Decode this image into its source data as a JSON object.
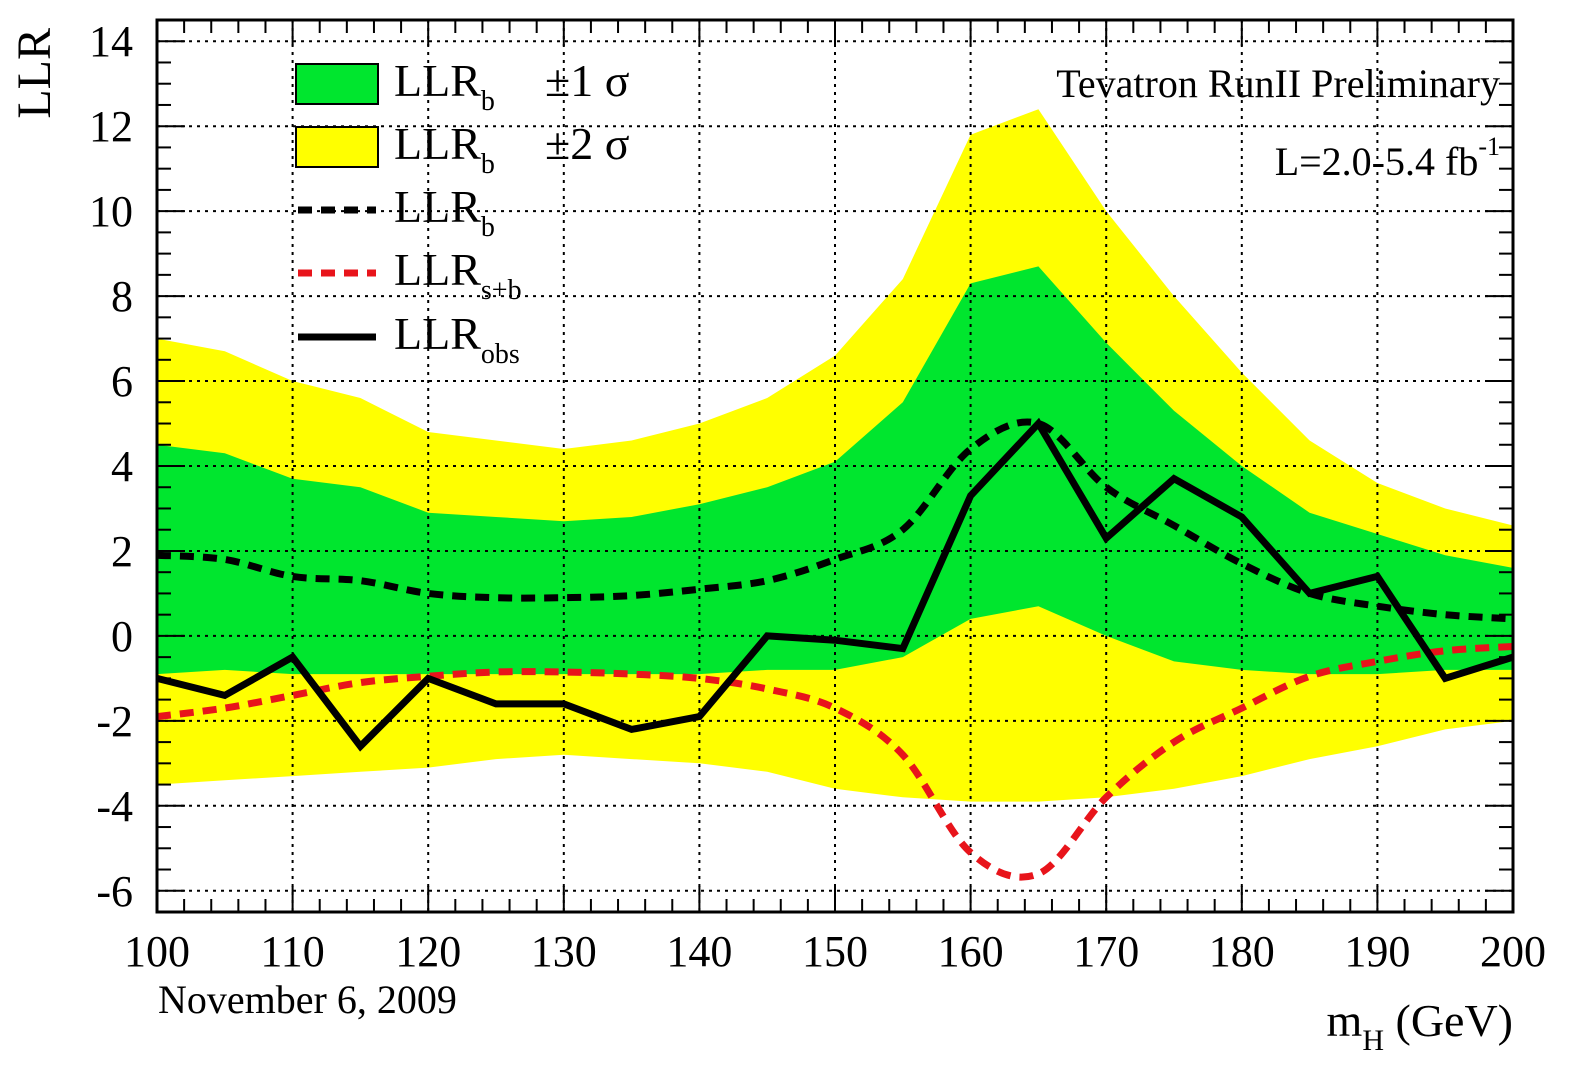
{
  "chart_data": {
    "type": "line",
    "xlabel": {
      "main": "m",
      "sub": "H",
      "unit": " (GeV)"
    },
    "ylabel": "LLR",
    "xlim": [
      100,
      200
    ],
    "ylim": [
      -6.5,
      14.5
    ],
    "grid": true,
    "x_ticks": [
      100,
      110,
      120,
      130,
      140,
      150,
      160,
      170,
      180,
      190,
      200
    ],
    "y_ticks": [
      -6,
      -4,
      -2,
      0,
      2,
      4,
      6,
      8,
      10,
      12,
      14
    ],
    "x_tick_labels": [
      "100",
      "110",
      "120",
      "130",
      "140",
      "150",
      "160",
      "170",
      "180",
      "190",
      "200"
    ],
    "y_tick_labels": [
      "-6",
      "-4",
      "-2",
      "0",
      "2",
      "4",
      "6",
      "8",
      "10",
      "12",
      "14"
    ],
    "annotations": {
      "experiment": "Tevatron RunII Preliminary",
      "lumi_main": "L=2.0-5.4 fb",
      "lumi_sup": "-1",
      "date": "November 6, 2009"
    },
    "legend": [
      {
        "main": "LLR",
        "sub": "b",
        "suffix": "±1 σ"
      },
      {
        "main": "LLR",
        "sub": "b",
        "suffix": "±2 σ"
      },
      {
        "main": "LLR",
        "sub": "b",
        "suffix": ""
      },
      {
        "main": "LLR",
        "sub": "s+b",
        "suffix": ""
      },
      {
        "main": "LLR",
        "sub": "obs",
        "suffix": ""
      }
    ],
    "x": [
      100,
      105,
      110,
      115,
      120,
      125,
      130,
      135,
      140,
      145,
      150,
      155,
      160,
      165,
      170,
      175,
      180,
      185,
      190,
      195,
      200
    ],
    "band_2sigma": {
      "upper": [
        7.0,
        6.7,
        6.0,
        5.6,
        4.8,
        4.6,
        4.4,
        4.6,
        5.0,
        5.6,
        6.6,
        8.4,
        11.8,
        12.4,
        10.0,
        8.0,
        6.2,
        4.6,
        3.6,
        3.0,
        2.6
      ],
      "lower": [
        -3.5,
        -3.4,
        -3.3,
        -3.2,
        -3.1,
        -2.9,
        -2.8,
        -2.9,
        -3.0,
        -3.2,
        -3.6,
        -3.8,
        -3.9,
        -3.9,
        -3.8,
        -3.6,
        -3.3,
        -2.9,
        -2.6,
        -2.2,
        -2.0
      ]
    },
    "band_1sigma": {
      "upper": [
        4.5,
        4.3,
        3.7,
        3.5,
        2.9,
        2.8,
        2.7,
        2.8,
        3.1,
        3.5,
        4.1,
        5.5,
        8.3,
        8.7,
        6.9,
        5.3,
        4.0,
        2.9,
        2.4,
        1.9,
        1.6
      ],
      "lower": [
        -0.9,
        -0.8,
        -0.9,
        -0.9,
        -0.9,
        -0.9,
        -0.9,
        -0.9,
        -0.9,
        -0.8,
        -0.8,
        -0.5,
        0.4,
        0.7,
        0.0,
        -0.6,
        -0.8,
        -0.9,
        -0.9,
        -0.8,
        -0.8
      ]
    },
    "series": [
      {
        "name": "LLR_b",
        "style": "dashed",
        "color": "#000000",
        "values": [
          1.9,
          1.8,
          1.4,
          1.3,
          1.0,
          0.9,
          0.9,
          0.95,
          1.1,
          1.3,
          1.8,
          2.5,
          4.4,
          5.0,
          3.5,
          2.6,
          1.7,
          1.0,
          0.7,
          0.5,
          0.4
        ]
      },
      {
        "name": "LLR_s+b",
        "style": "dashed",
        "color": "#e8141b",
        "values": [
          -1.9,
          -1.7,
          -1.4,
          -1.1,
          -0.95,
          -0.85,
          -0.85,
          -0.9,
          -1.0,
          -1.25,
          -1.7,
          -2.8,
          -5.1,
          -5.6,
          -3.8,
          -2.5,
          -1.7,
          -0.95,
          -0.6,
          -0.35,
          -0.25
        ]
      },
      {
        "name": "LLR_obs",
        "style": "solid",
        "color": "#000000",
        "values": [
          -1.0,
          -1.4,
          -0.5,
          -2.6,
          -1.0,
          -1.6,
          -1.6,
          -2.2,
          -1.9,
          0.0,
          -0.1,
          -0.3,
          3.3,
          5.0,
          2.3,
          3.7,
          2.8,
          1.0,
          1.4,
          -1.0,
          -0.5
        ]
      }
    ],
    "colors": {
      "band_1sigma": "#00e62e",
      "band_2sigma": "#ffff00",
      "llr_b": "#000000",
      "llr_sb": "#e8141b",
      "llr_obs": "#000000"
    }
  }
}
